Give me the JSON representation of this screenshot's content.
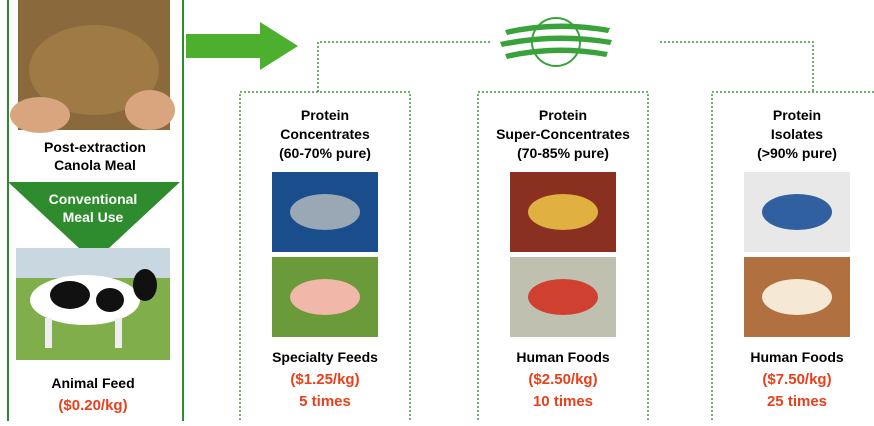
{
  "left": {
    "caption": [
      "Post-extraction",
      "Canola Meal"
    ],
    "conventional": [
      "Conventional",
      "Meal Use"
    ],
    "label": "Animal Feed",
    "price": "($0.20/kg)"
  },
  "columns": [
    {
      "title": [
        "Protein",
        "Concentrates",
        "(60-70% pure)"
      ],
      "label": "Specialty Feeds",
      "price": "($1.25/kg)",
      "multiple": "5 times"
    },
    {
      "title": [
        "Protein",
        "Super-Concentrates",
        "(70-85% pure)"
      ],
      "label": "Human Foods",
      "price": "($2.50/kg)",
      "multiple": "10 times"
    },
    {
      "title": [
        "Protein",
        "Isolates",
        "(>90% pure)"
      ],
      "label": "Human Foods",
      "price": "($7.50/kg)",
      "multiple": "25 times"
    }
  ]
}
